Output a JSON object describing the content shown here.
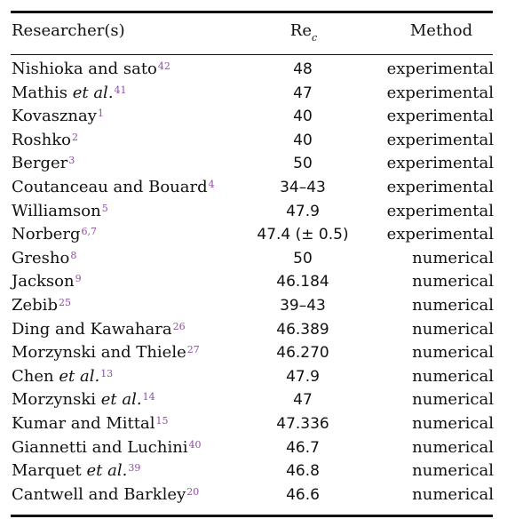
{
  "table": {
    "headers": {
      "researcher": "Researcher(s)",
      "re_main": "Re",
      "re_sub": "c",
      "method": "Method"
    },
    "rows": [
      {
        "name": "Nishioka and sato",
        "etal": "",
        "ref": "42",
        "re": "48",
        "method": "experimental"
      },
      {
        "name": "Mathis",
        "etal": "et al.",
        "ref": "41",
        "re": "47",
        "method": "experimental"
      },
      {
        "name": "Kovasznay",
        "etal": "",
        "ref": "1",
        "re": "40",
        "method": "experimental"
      },
      {
        "name": "Roshko",
        "etal": "",
        "ref": "2",
        "re": "40",
        "method": "experimental"
      },
      {
        "name": "Berger",
        "etal": "",
        "ref": "3",
        "re": "50",
        "method": "experimental"
      },
      {
        "name": "Coutanceau and Bouard",
        "etal": "",
        "ref": "4",
        "re": "34–43",
        "method": "experimental"
      },
      {
        "name": "Williamson",
        "etal": "",
        "ref": "5",
        "re": "47.9",
        "method": "experimental"
      },
      {
        "name": "Norberg",
        "etal": "",
        "ref": "6,7",
        "re": "47.4 (± 0.5)",
        "method": "experimental"
      },
      {
        "name": "Gresho",
        "etal": "",
        "ref": "8",
        "re": "50",
        "method": "numerical"
      },
      {
        "name": "Jackson",
        "etal": "",
        "ref": "9",
        "re": "46.184",
        "method": "numerical"
      },
      {
        "name": "Zebib",
        "etal": "",
        "ref": "25",
        "re": "39–43",
        "method": "numerical"
      },
      {
        "name": "Ding and Kawahara",
        "etal": "",
        "ref": "26",
        "re": "46.389",
        "method": "numerical"
      },
      {
        "name": "Morzynski and Thiele",
        "etal": "",
        "ref": "27",
        "re": "46.270",
        "method": "numerical"
      },
      {
        "name": "Chen",
        "etal": "et al.",
        "ref": "13",
        "re": "47.9",
        "method": "numerical"
      },
      {
        "name": "Morzynski",
        "etal": "et al.",
        "ref": "14",
        "re": "47",
        "method": "numerical"
      },
      {
        "name": "Kumar and Mittal",
        "etal": "",
        "ref": "15",
        "re": "47.336",
        "method": "numerical"
      },
      {
        "name": "Giannetti and Luchini",
        "etal": "",
        "ref": "40",
        "re": "46.7",
        "method": "numerical"
      },
      {
        "name": "Marquet",
        "etal": "et al.",
        "ref": "39",
        "re": "46.8",
        "method": "numerical"
      },
      {
        "name": "Cantwell and Barkley",
        "etal": "",
        "ref": "20",
        "re": "46.6",
        "method": "numerical"
      }
    ]
  }
}
